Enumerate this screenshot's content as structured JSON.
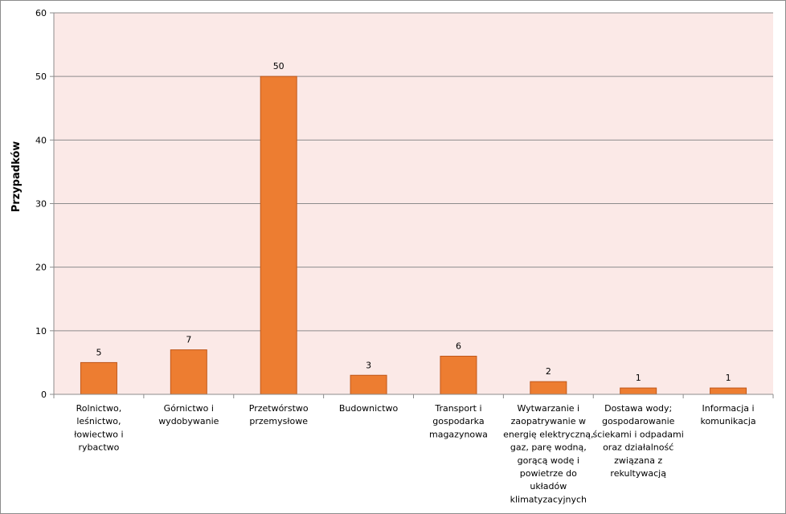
{
  "chart_data": {
    "type": "bar",
    "title": "",
    "xlabel": "",
    "ylabel": "Przypadków",
    "ylim": [
      0,
      60
    ],
    "yticks": [
      0,
      10,
      20,
      30,
      40,
      50,
      60
    ],
    "grid": true,
    "legend": "none",
    "categories": [
      [
        "Rolnictwo,",
        "leśnictwo,",
        "łowiectwo i",
        "rybactwo"
      ],
      [
        "Górnictwo i",
        "wydobywanie"
      ],
      [
        "Przetwórstwo",
        "przemysłowe"
      ],
      [
        "Budownictwo"
      ],
      [
        "Transport i",
        "gospodarka",
        "magazynowa"
      ],
      [
        "Wytwarzanie i",
        "zaopatrywanie  w",
        "energię elektryczną,",
        "gaz, parę wodną,",
        "gorącą wodę  i",
        "powietrze do",
        "układów",
        "klimatyzacyjnych"
      ],
      [
        "Dostawa wody;",
        "gospodarowanie",
        "ściekami i odpadami",
        "oraz działalność",
        "związana z",
        "rekultywacją"
      ],
      [
        "Informacja i",
        "komunikacja"
      ]
    ],
    "values": [
      5,
      7,
      50,
      3,
      6,
      2,
      1,
      1
    ],
    "colors": {
      "bar_fill": "#ED7D31",
      "bar_stroke": "#C0581B",
      "plot_background": "#FBE9E7",
      "gridline": "#8C8C8C"
    }
  }
}
